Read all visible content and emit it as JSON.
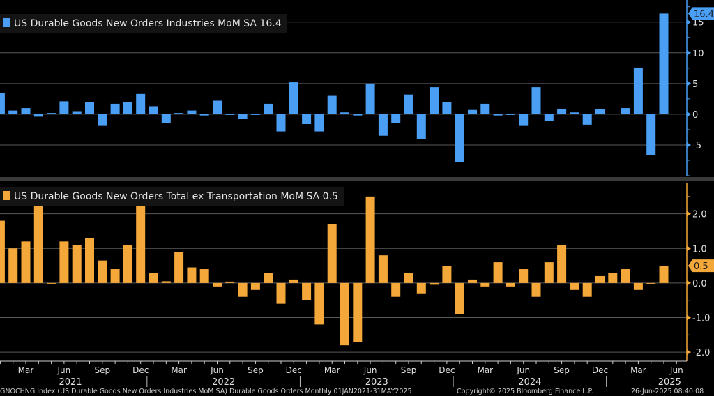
{
  "chart_data": [
    {
      "type": "bar",
      "legend": "US Durable Goods New Orders Industries MoM SA 16.4",
      "last_value_label": "16.4",
      "color": "#4a9ff5",
      "ylim": [
        -10,
        18.6
      ],
      "yticks": [
        -5,
        0,
        5,
        10,
        15
      ],
      "grid": true,
      "legend_placement": "top-left",
      "axis_side": "right",
      "values": [
        3.5,
        0.6,
        1.0,
        -0.4,
        0.2,
        2.1,
        0.5,
        2.0,
        -1.9,
        1.7,
        2.0,
        3.3,
        1.3,
        -1.4,
        0.2,
        0.6,
        -0.2,
        2.2,
        -0.1,
        -0.7,
        0.0,
        1.7,
        -2.8,
        5.2,
        -1.6,
        -2.8,
        3.1,
        0.3,
        -0.2,
        5.0,
        -3.5,
        -1.4,
        3.2,
        -4.0,
        4.4,
        2.0,
        -7.8,
        0.7,
        1.7,
        -0.2,
        0.0,
        -1.9,
        4.4,
        -1.1,
        0.9,
        0.3,
        -1.7,
        0.8,
        0.1,
        1.0,
        7.6,
        -6.7,
        16.4
      ]
    },
    {
      "type": "bar",
      "legend": "US Durable Goods New Orders Total ex Transportation MoM SA 0.5",
      "last_value_label": "0.5",
      "color": "#f5a83a",
      "ylim": [
        -2.26,
        2.9
      ],
      "yticks": [
        -2.0,
        -1.0,
        0.0,
        1.0,
        2.0
      ],
      "grid": true,
      "legend_placement": "top-left",
      "axis_side": "right",
      "values": [
        1.8,
        1.0,
        1.2,
        2.3,
        0.0,
        1.2,
        1.1,
        1.3,
        0.65,
        0.4,
        1.1,
        2.4,
        0.3,
        0.05,
        0.9,
        0.45,
        0.4,
        -0.1,
        0.04,
        -0.4,
        -0.2,
        0.3,
        -0.6,
        0.1,
        -0.5,
        -1.2,
        1.7,
        -1.8,
        -1.7,
        2.5,
        0.8,
        -0.4,
        0.3,
        -0.3,
        -0.05,
        0.5,
        -0.9,
        0.1,
        -0.1,
        0.6,
        -0.1,
        0.4,
        -0.4,
        0.6,
        1.1,
        -0.2,
        -0.4,
        0.2,
        0.3,
        0.4,
        -0.2,
        0.0,
        0.5
      ]
    }
  ],
  "x_axis": {
    "start": "2021-01",
    "end": "2025-05",
    "frequency": "monthly",
    "month_labels": [
      "Mar",
      "Jun",
      "Sep",
      "Dec"
    ],
    "year_labels": [
      "2021",
      "2022",
      "2023",
      "2024",
      "2025"
    ]
  },
  "footer": {
    "source": "GNOCHNG Index (US Durable Goods New Orders Industries MoM SA) Durable Goods Orders  Monthly 01JAN2021-31MAY2025",
    "copyright": "Copyright© 2025 Bloomberg Finance L.P.",
    "timestamp": "26-Jun-2025 08:40:08"
  }
}
